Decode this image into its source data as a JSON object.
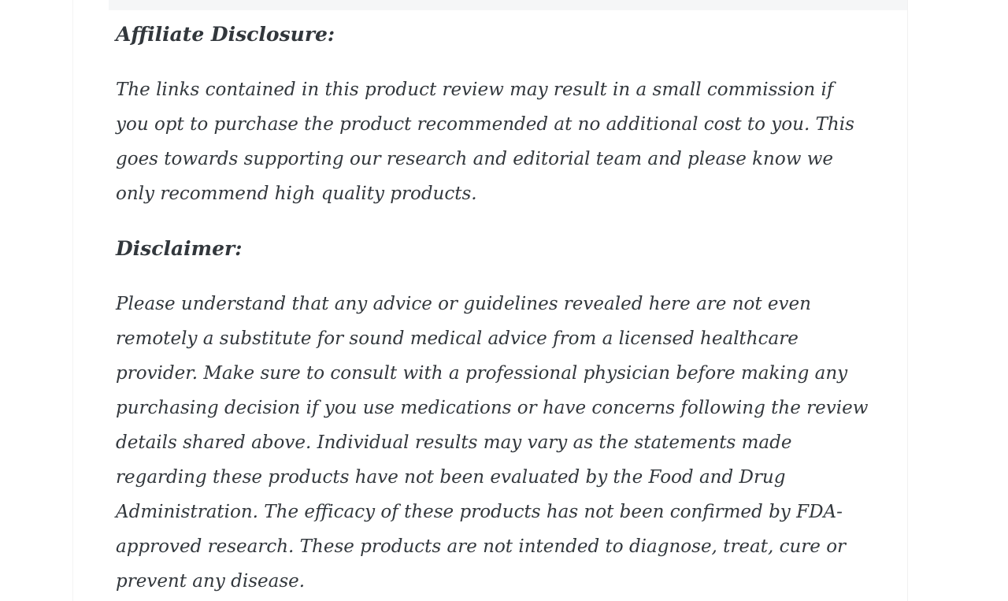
{
  "page": {
    "background_color": "#ffffff",
    "text_color": "#32373c",
    "top_strip_color": "#f5f6f7"
  },
  "article": {
    "sections": [
      {
        "heading": "Affiliate Disclosure:",
        "body": "The links contained in this product review may result in a small commission if\nyou opt to purchase the product recommended at no additional cost to you. This\ngoes towards supporting our research and editorial team and please know we\nonly recommend high quality products."
      },
      {
        "heading": "Disclaimer:",
        "body": "Please understand that any advice or guidelines revealed here are not even\nremotely a substitute for sound medical advice from a licensed healthcare\nprovider. Make sure to consult with a professional physician before making any\npurchasing decision if you use medications or have concerns following the review\ndetails shared above. Individual results may vary as the statements made\nregarding these products have not been evaluated by the Food and Drug\nAdministration. The efficacy of these products has not been confirmed by FDA-\napproved research. These products are not intended to diagnose, treat, cure or\nprevent any disease."
      }
    ]
  }
}
